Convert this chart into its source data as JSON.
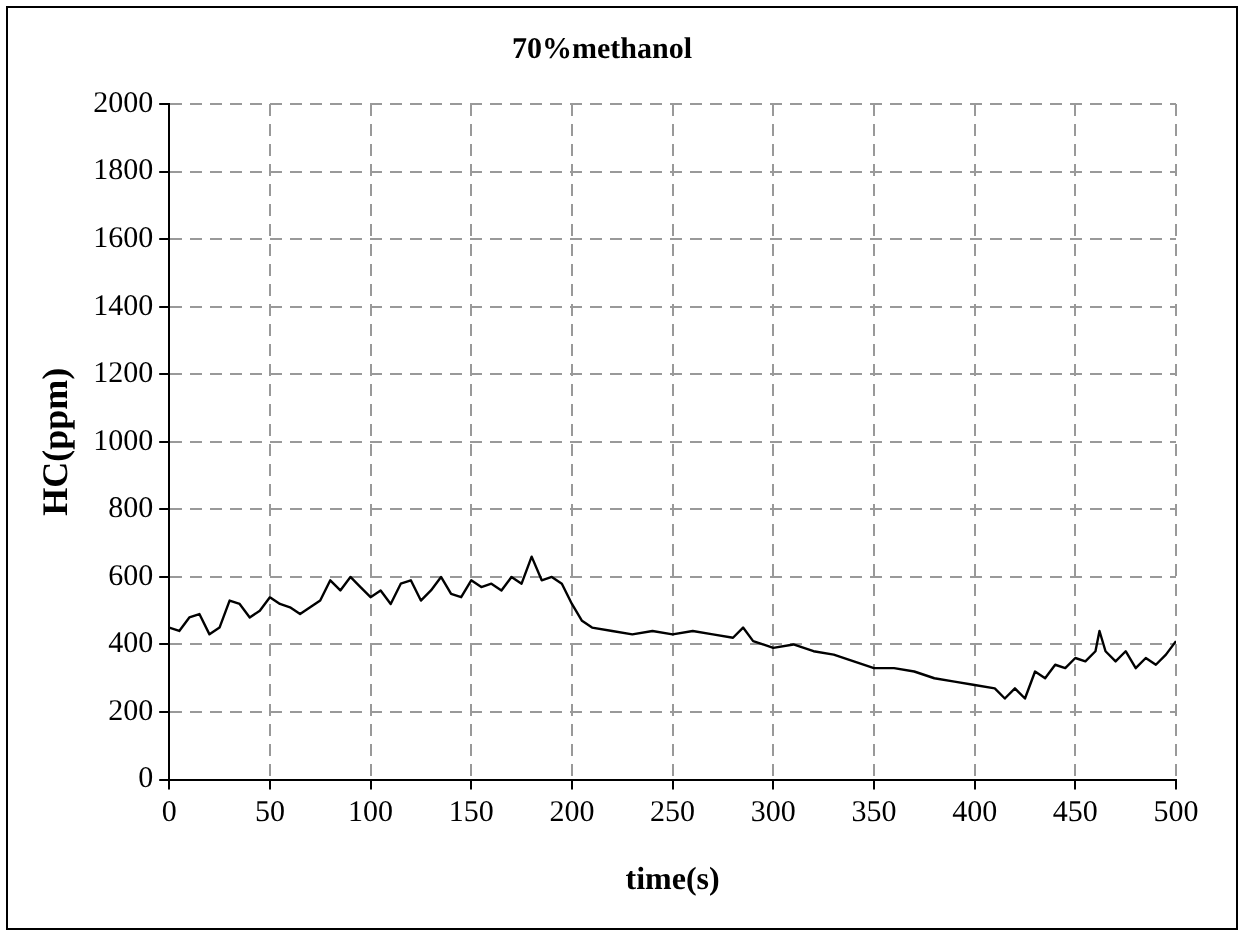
{
  "chart_data": {
    "type": "line",
    "title": "70%methanol",
    "xlabel": "time(s)",
    "ylabel": "HC(ppm)",
    "x": [
      0,
      5,
      10,
      15,
      20,
      25,
      30,
      35,
      40,
      45,
      50,
      55,
      60,
      65,
      70,
      75,
      80,
      85,
      90,
      95,
      100,
      105,
      110,
      115,
      120,
      125,
      130,
      135,
      140,
      145,
      150,
      155,
      160,
      165,
      170,
      175,
      180,
      185,
      190,
      195,
      200,
      205,
      210,
      220,
      230,
      240,
      250,
      260,
      270,
      280,
      285,
      290,
      300,
      310,
      320,
      330,
      340,
      350,
      360,
      370,
      380,
      390,
      400,
      410,
      415,
      420,
      425,
      430,
      435,
      440,
      445,
      450,
      455,
      460,
      462,
      465,
      470,
      475,
      480,
      485,
      490,
      495,
      500
    ],
    "series": [
      {
        "color": "#000000",
        "values": [
          450,
          440,
          480,
          490,
          430,
          450,
          530,
          520,
          480,
          500,
          540,
          520,
          510,
          490,
          510,
          530,
          590,
          560,
          600,
          570,
          540,
          560,
          520,
          580,
          590,
          530,
          560,
          600,
          550,
          540,
          590,
          570,
          580,
          560,
          600,
          580,
          660,
          590,
          600,
          580,
          520,
          470,
          450,
          440,
          430,
          440,
          430,
          440,
          430,
          420,
          450,
          410,
          390,
          400,
          380,
          370,
          350,
          330,
          330,
          320,
          300,
          290,
          280,
          270,
          240,
          270,
          240,
          320,
          300,
          340,
          330,
          360,
          350,
          380,
          440,
          380,
          350,
          380,
          330,
          360,
          340,
          370,
          410
        ]
      }
    ],
    "xlim": [
      0,
      500
    ],
    "xticks": [
      0,
      50,
      100,
      150,
      200,
      250,
      300,
      350,
      400,
      450,
      500
    ],
    "ylim": [
      0,
      2000
    ],
    "yticks": [
      0,
      200,
      400,
      600,
      800,
      1000,
      1200,
      1400,
      1600,
      1800,
      2000
    ],
    "grid": true,
    "legend": false,
    "marker": "none",
    "line_style": "solid"
  }
}
